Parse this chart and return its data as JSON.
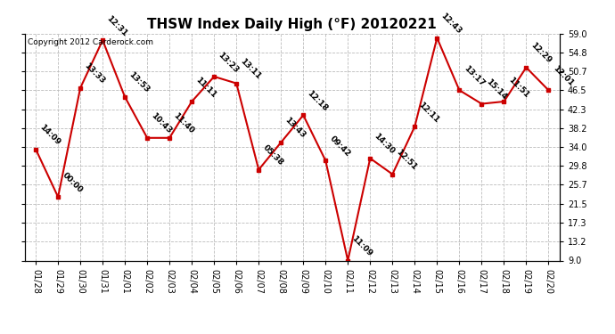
{
  "title": "THSW Index Daily High (°F) 20120221",
  "copyright": "Copyright 2012 Carderock.com",
  "x_labels": [
    "01/28",
    "01/29",
    "01/30",
    "01/31",
    "02/01",
    "02/02",
    "02/03",
    "02/04",
    "02/05",
    "02/06",
    "02/07",
    "02/08",
    "02/09",
    "02/10",
    "02/11",
    "02/12",
    "02/13",
    "02/14",
    "02/15",
    "02/16",
    "02/17",
    "02/18",
    "02/19",
    "02/20"
  ],
  "y_values": [
    33.5,
    23.0,
    47.0,
    57.5,
    45.0,
    36.0,
    36.0,
    44.0,
    49.5,
    48.0,
    29.0,
    35.0,
    41.0,
    31.0,
    9.0,
    31.5,
    28.0,
    38.5,
    58.0,
    46.5,
    43.5,
    44.0,
    51.5,
    46.5
  ],
  "point_labels": [
    "14:09",
    "00:00",
    "13:33",
    "12:31",
    "13:53",
    "10:43",
    "11:40",
    "11:11",
    "13:23",
    "13:11",
    "05:38",
    "13:43",
    "12:18",
    "09:42",
    "11:09",
    "14:30",
    "12:51",
    "12:11",
    "12:43",
    "13:17",
    "15:14",
    "11:51",
    "12:29",
    "12:01"
  ],
  "ylim": [
    9.0,
    59.0
  ],
  "yticks": [
    9.0,
    13.2,
    17.3,
    21.5,
    25.7,
    29.8,
    34.0,
    38.2,
    42.3,
    46.5,
    50.7,
    54.8,
    59.0
  ],
  "line_color": "#cc0000",
  "marker_color": "#cc0000",
  "bg_color": "#ffffff",
  "plot_bg_color": "#ffffff",
  "grid_color": "#bbbbbb",
  "label_color": "#000000",
  "title_color": "#000000",
  "copyright_color": "#000000",
  "title_fontsize": 11,
  "label_fontsize": 6.5,
  "tick_fontsize": 7,
  "copyright_fontsize": 6.5
}
